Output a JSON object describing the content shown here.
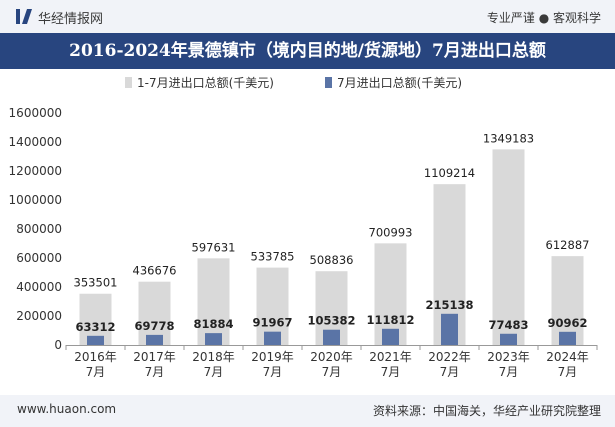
{
  "header": {
    "brand": "华经情报网",
    "tagline": "专业严谨 ● 客观科学"
  },
  "footer": {
    "site": "www.huaon.com",
    "source": "资料来源：中国海关，华经产业研究院整理"
  },
  "colors": {
    "header_bg": "#f1f3f8",
    "title_bg": "#28457f",
    "bar_total": "#d9d9d9",
    "bar_month": "#5a74a6",
    "logo": "#28457f"
  },
  "chart_data": {
    "type": "bar",
    "title": "2016-2024年景德镇市（境内目的地/货源地）7月进出口总额",
    "categories": [
      "2016年\n7月",
      "2017年\n7月",
      "2018年\n7月",
      "2019年\n7月",
      "2020年\n7月",
      "2021年\n7月",
      "2022年\n7月",
      "2023年\n7月",
      "2024年\n7月"
    ],
    "series": [
      {
        "name": "1-7月进出口总额(千美元)",
        "values": [
          353501,
          436676,
          597631,
          533785,
          508836,
          700993,
          1109214,
          1349183,
          612887
        ]
      },
      {
        "name": "7月进出口总额(千美元)",
        "values": [
          63312,
          69778,
          81884,
          91967,
          105382,
          111812,
          215138,
          77483,
          90962
        ]
      }
    ],
    "yticks": [
      "0",
      "200000",
      "400000",
      "600000",
      "800000",
      "1000000",
      "1200000",
      "1400000",
      "1600000"
    ],
    "ylim": [
      0,
      1600000
    ],
    "xlabel": "",
    "ylabel": "",
    "grid": false,
    "legend": "top"
  }
}
